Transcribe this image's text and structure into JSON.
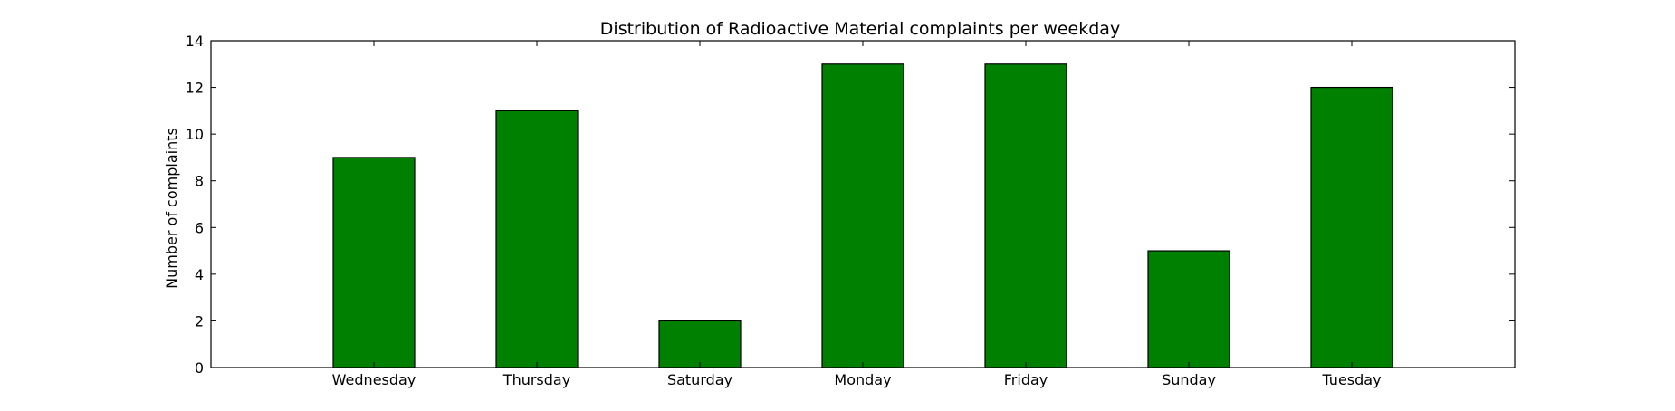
{
  "chart_data": {
    "type": "bar",
    "title": "Distribution of  Radioactive Material complaints per weekday",
    "xlabel": "",
    "ylabel": "Number of complaints",
    "categories": [
      "Wednesday",
      "Thursday",
      "Saturday",
      "Monday",
      "Friday",
      "Sunday",
      "Tuesday"
    ],
    "values": [
      9,
      11,
      2,
      13,
      13,
      5,
      12
    ],
    "ylim": [
      0,
      14
    ],
    "yticks": [
      0,
      2,
      4,
      6,
      8,
      10,
      12,
      14
    ],
    "xlim": [
      -1,
      7
    ],
    "bar_color": "#008000",
    "edge_color": "#000000",
    "grid": false,
    "legend": "none"
  }
}
